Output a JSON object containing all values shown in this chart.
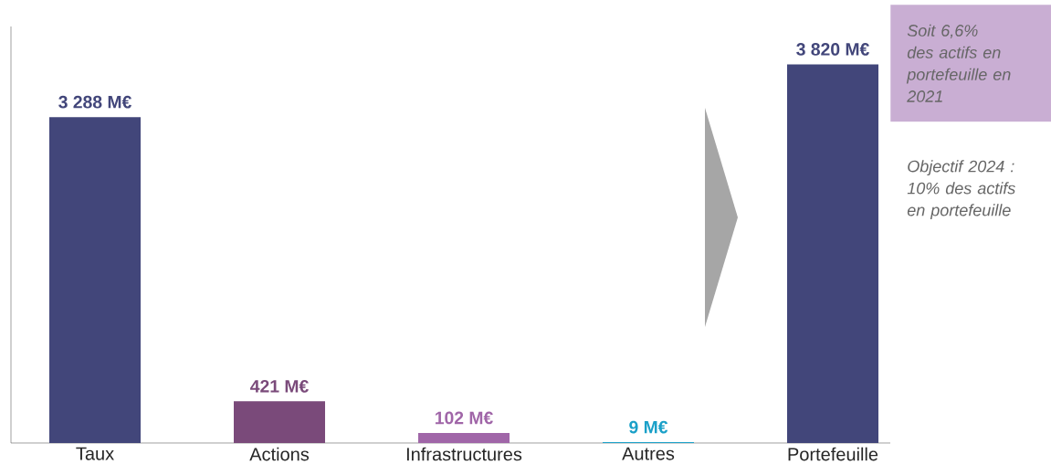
{
  "chart_data": {
    "type": "bar",
    "categories": [
      "Taux",
      "Actions",
      "Infrastructures",
      "Autres",
      "Portefeuille"
    ],
    "values": [
      3288,
      421,
      102,
      9,
      3820
    ],
    "colors": [
      "#42467a",
      "#7a4a7a",
      "#a066a8",
      "#1aa0c8",
      "#42467a"
    ],
    "value_labels": [
      "3 288 M€",
      "421 M€",
      "102 M€",
      "9 M€",
      "3 820 M€"
    ],
    "annotations": [
      "Soit 6,6% des actifs en portefeuille en 2021",
      "Objectif 2024 : 10% des actifs en portefeuille"
    ]
  }
}
